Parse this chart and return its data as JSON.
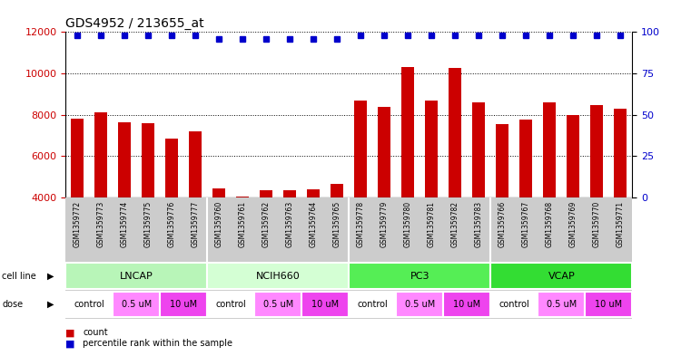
{
  "title": "GDS4952 / 213655_at",
  "samples": [
    "GSM1359772",
    "GSM1359773",
    "GSM1359774",
    "GSM1359775",
    "GSM1359776",
    "GSM1359777",
    "GSM1359760",
    "GSM1359761",
    "GSM1359762",
    "GSM1359763",
    "GSM1359764",
    "GSM1359765",
    "GSM1359778",
    "GSM1359779",
    "GSM1359780",
    "GSM1359781",
    "GSM1359782",
    "GSM1359783",
    "GSM1359766",
    "GSM1359767",
    "GSM1359768",
    "GSM1359769",
    "GSM1359770",
    "GSM1359771"
  ],
  "counts": [
    7800,
    8100,
    7650,
    7600,
    6850,
    7200,
    4450,
    4050,
    4350,
    4350,
    4400,
    4650,
    8700,
    8400,
    10300,
    8700,
    10250,
    8600,
    7550,
    7750,
    8600,
    8000,
    8450,
    8300
  ],
  "percentile_ranks": [
    98,
    98,
    98,
    98,
    98,
    98,
    96,
    96,
    96,
    96,
    96,
    96,
    98,
    98,
    98,
    98,
    98,
    98,
    98,
    98,
    98,
    98,
    98,
    98
  ],
  "bar_color": "#cc0000",
  "dot_color": "#0000cc",
  "ylim_left": [
    4000,
    12000
  ],
  "yticks_left": [
    4000,
    6000,
    8000,
    10000,
    12000
  ],
  "ylim_right": [
    0,
    100
  ],
  "yticks_right": [
    0,
    25,
    50,
    75,
    100
  ],
  "cell_lines": [
    {
      "name": "LNCAP",
      "start": 0,
      "end": 6,
      "color": "#b8f5b8"
    },
    {
      "name": "NCIH660",
      "start": 6,
      "end": 12,
      "color": "#d4ffd4"
    },
    {
      "name": "PC3",
      "start": 12,
      "end": 18,
      "color": "#55ee55"
    },
    {
      "name": "VCAP",
      "start": 18,
      "end": 24,
      "color": "#33dd33"
    }
  ],
  "doses": [
    {
      "name": "control",
      "start": 0,
      "end": 2,
      "color": "#ffffff"
    },
    {
      "name": "0.5 uM",
      "start": 2,
      "end": 4,
      "color": "#ff88ff"
    },
    {
      "name": "10 uM",
      "start": 4,
      "end": 6,
      "color": "#ee44ee"
    },
    {
      "name": "control",
      "start": 6,
      "end": 8,
      "color": "#ffffff"
    },
    {
      "name": "0.5 uM",
      "start": 8,
      "end": 10,
      "color": "#ff88ff"
    },
    {
      "name": "10 uM",
      "start": 10,
      "end": 12,
      "color": "#ee44ee"
    },
    {
      "name": "control",
      "start": 12,
      "end": 14,
      "color": "#ffffff"
    },
    {
      "name": "0.5 uM",
      "start": 14,
      "end": 16,
      "color": "#ff88ff"
    },
    {
      "name": "10 uM",
      "start": 16,
      "end": 18,
      "color": "#ee44ee"
    },
    {
      "name": "control",
      "start": 18,
      "end": 20,
      "color": "#ffffff"
    },
    {
      "name": "0.5 uM",
      "start": 20,
      "end": 22,
      "color": "#ff88ff"
    },
    {
      "name": "10 uM",
      "start": 22,
      "end": 24,
      "color": "#ee44ee"
    }
  ],
  "bar_color_red": "#cc0000",
  "dot_color_blue": "#0000cc",
  "bg_color": "#ffffff",
  "grid_color": "#000000",
  "xticklabel_bg": "#cccccc",
  "left_axis_label_color": "#cc0000",
  "right_axis_label_color": "#0000cc"
}
